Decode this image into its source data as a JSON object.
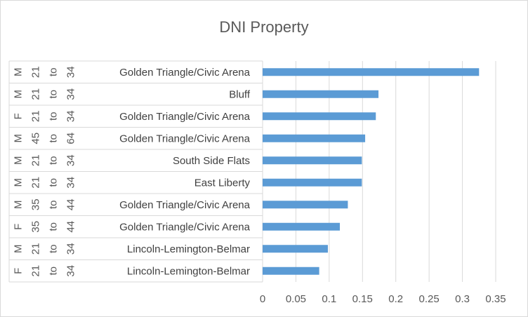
{
  "chart_data": {
    "type": "bar",
    "orientation": "horizontal",
    "title": "DNI Property",
    "xlabel": "",
    "ylabel": "",
    "xlim": [
      0,
      0.35
    ],
    "x_ticks": [
      "0",
      "0.05",
      "0.1",
      "0.15",
      "0.2",
      "0.25",
      "0.3",
      "0.35"
    ],
    "grid": "vertical",
    "legend": "none",
    "bar_color": "#5b9bd5",
    "categories": [
      {
        "sex": "M",
        "age_from": "21",
        "to": "to",
        "age_to": "34",
        "area": "Golden Triangle/Civic Arena",
        "value": 0.325
      },
      {
        "sex": "M",
        "age_from": "21",
        "to": "to",
        "age_to": "34",
        "area": "Bluff",
        "value": 0.174
      },
      {
        "sex": "F",
        "age_from": "21",
        "to": "to",
        "age_to": "34",
        "area": "Golden Triangle/Civic Arena",
        "value": 0.17
      },
      {
        "sex": "M",
        "age_from": "45",
        "to": "to",
        "age_to": "64",
        "area": "Golden Triangle/Civic Arena",
        "value": 0.154
      },
      {
        "sex": "M",
        "age_from": "21",
        "to": "to",
        "age_to": "34",
        "area": "South Side Flats",
        "value": 0.149
      },
      {
        "sex": "M",
        "age_from": "21",
        "to": "to",
        "age_to": "34",
        "area": "East Liberty",
        "value": 0.149
      },
      {
        "sex": "M",
        "age_from": "35",
        "to": "to",
        "age_to": "44",
        "area": "Golden Triangle/Civic Arena",
        "value": 0.128
      },
      {
        "sex": "F",
        "age_from": "35",
        "to": "to",
        "age_to": "44",
        "area": "Golden Triangle/Civic Arena",
        "value": 0.116
      },
      {
        "sex": "M",
        "age_from": "21",
        "to": "to",
        "age_to": "34",
        "area": "Lincoln-Lemington-Belmar",
        "value": 0.098
      },
      {
        "sex": "F",
        "age_from": "21",
        "to": "to",
        "age_to": "34",
        "area": "Lincoln-Lemington-Belmar",
        "value": 0.085
      }
    ]
  }
}
